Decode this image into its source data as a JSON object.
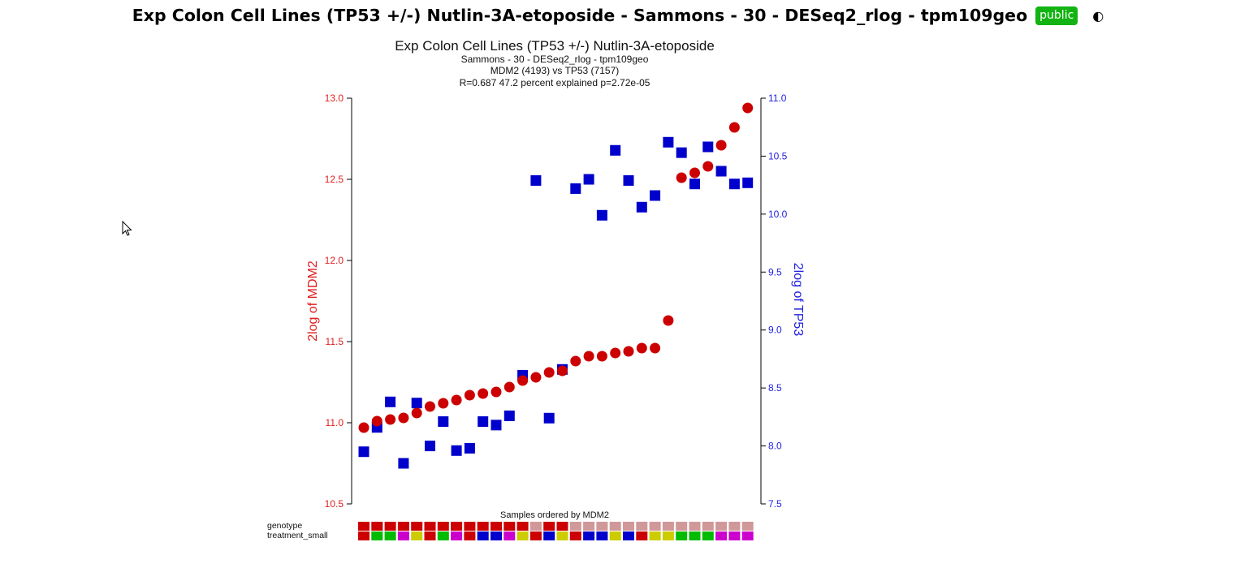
{
  "header": {
    "title": "Exp Colon Cell Lines (TP53 +/-) Nutlin-3A-etoposide - Sammons - 30 - DESeq2_rlog - tpm109geo",
    "badge": "public",
    "contrast_icon": "contrast-toggle-icon",
    "contrast_glyph": "◐"
  },
  "cursor_icon": "arrow-cursor-icon",
  "chart_data": {
    "type": "scatter",
    "title": "Exp Colon Cell Lines (TP53 +/-) Nutlin-3A-etoposide",
    "subtitles": [
      "Sammons - 30 - DESeq2_rlog - tpm109geo",
      "MDM2 (4193) vs TP53 (7157)",
      "R=0.687 47.2 percent explained p=2.72e-05"
    ],
    "xlabel": "Samples ordered by MDM2",
    "ylabel_left": "2log of MDM2",
    "ylabel_right": "2log of TP53",
    "ylim_left": [
      10.5,
      13.0
    ],
    "ylim_right": [
      7.5,
      11.0
    ],
    "yticks_left": [
      "10.5",
      "11.0",
      "11.5",
      "12.0",
      "12.5",
      "13.0"
    ],
    "yticks_right": [
      "7.5",
      "8.0",
      "8.5",
      "9.0",
      "9.5",
      "10.0",
      "10.5",
      "11.0"
    ],
    "grid": false,
    "colors": {
      "left_axis": "#e02020",
      "right_axis": "#2020e0",
      "mdm2_marker": "#cc0000",
      "tp53_marker": "#0000cc"
    },
    "series": [
      {
        "axis": "left",
        "marker": "circle",
        "values": [
          10.97,
          11.01,
          11.02,
          11.03,
          11.06,
          11.1,
          11.12,
          11.14,
          11.17,
          11.18,
          11.19,
          11.22,
          11.26,
          11.28,
          11.31,
          11.32,
          11.38,
          11.41,
          11.41,
          11.43,
          11.44,
          11.46,
          11.46,
          11.63,
          12.51,
          12.54,
          12.58,
          12.71,
          12.82,
          12.94
        ]
      },
      {
        "axis": "right",
        "marker": "square",
        "values": [
          7.95,
          8.16,
          8.38,
          7.85,
          8.37,
          8.0,
          8.21,
          7.96,
          7.98,
          8.21,
          8.18,
          8.26,
          8.61,
          10.29,
          8.24,
          8.66,
          10.22,
          10.3,
          9.99,
          10.55,
          10.29,
          10.06,
          10.16,
          10.62,
          10.53,
          10.26,
          10.58,
          10.37,
          10.26,
          10.27
        ]
      }
    ],
    "annotation_rows": [
      {
        "label": "genotype",
        "colors": [
          "#cc0000",
          "#cc0000",
          "#cc0000",
          "#cc0000",
          "#cc0000",
          "#cc0000",
          "#cc0000",
          "#cc0000",
          "#cc0000",
          "#cc0000",
          "#cc0000",
          "#cc0000",
          "#cc0000",
          "#d09898",
          "#cc0000",
          "#cc0000",
          "#d09898",
          "#d09898",
          "#d09898",
          "#d09898",
          "#d09898",
          "#d09898",
          "#d09898",
          "#d09898",
          "#d09898",
          "#d09898",
          "#d09898",
          "#d09898",
          "#d09898",
          "#d09898"
        ]
      },
      {
        "label": "treatment_small",
        "colors": [
          "#cc0000",
          "#00bb00",
          "#00bb00",
          "#cc00cc",
          "#cccc00",
          "#cc0000",
          "#00bb00",
          "#cc00cc",
          "#cc0000",
          "#0000cc",
          "#0000cc",
          "#cc00cc",
          "#cccc00",
          "#cc0000",
          "#0000cc",
          "#cccc00",
          "#cc0000",
          "#0000cc",
          "#0000cc",
          "#cccc00",
          "#0000cc",
          "#cc0000",
          "#cccc00",
          "#cccc00",
          "#00bb00",
          "#00bb00",
          "#00bb00",
          "#cc00cc",
          "#cc00cc",
          "#cc00cc"
        ]
      }
    ]
  }
}
